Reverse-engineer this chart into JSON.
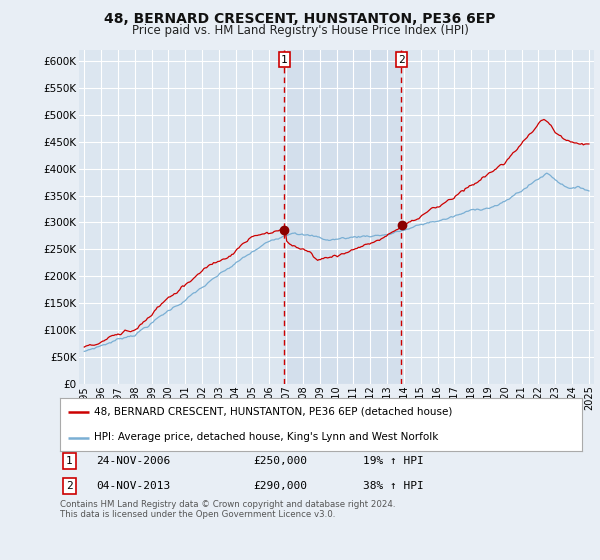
{
  "title": "48, BERNARD CRESCENT, HUNSTANTON, PE36 6EP",
  "subtitle": "Price paid vs. HM Land Registry's House Price Index (HPI)",
  "ylim": [
    0,
    620000
  ],
  "yticks": [
    0,
    50000,
    100000,
    150000,
    200000,
    250000,
    300000,
    350000,
    400000,
    450000,
    500000,
    550000,
    600000
  ],
  "background_color": "#e8eef5",
  "plot_bg_color": "#dce6f0",
  "shade_color": "#ccdaea",
  "grid_color": "#ffffff",
  "marker1_x": 2006.9,
  "marker2_x": 2013.85,
  "legend_entry1": "48, BERNARD CRESCENT, HUNSTANTON, PE36 6EP (detached house)",
  "legend_entry2": "HPI: Average price, detached house, King's Lynn and West Norfolk",
  "note1_label": "1",
  "note1_date": "24-NOV-2006",
  "note1_price": "£250,000",
  "note1_hpi": "19% ↑ HPI",
  "note2_label": "2",
  "note2_date": "04-NOV-2013",
  "note2_price": "£290,000",
  "note2_hpi": "38% ↑ HPI",
  "footer": "Contains HM Land Registry data © Crown copyright and database right 2024.\nThis data is licensed under the Open Government Licence v3.0.",
  "line1_color": "#cc0000",
  "line2_color": "#7aafd4",
  "marker_line_color": "#cc0000",
  "dot_color": "#8b0000",
  "xmin": 1995,
  "xmax": 2025
}
